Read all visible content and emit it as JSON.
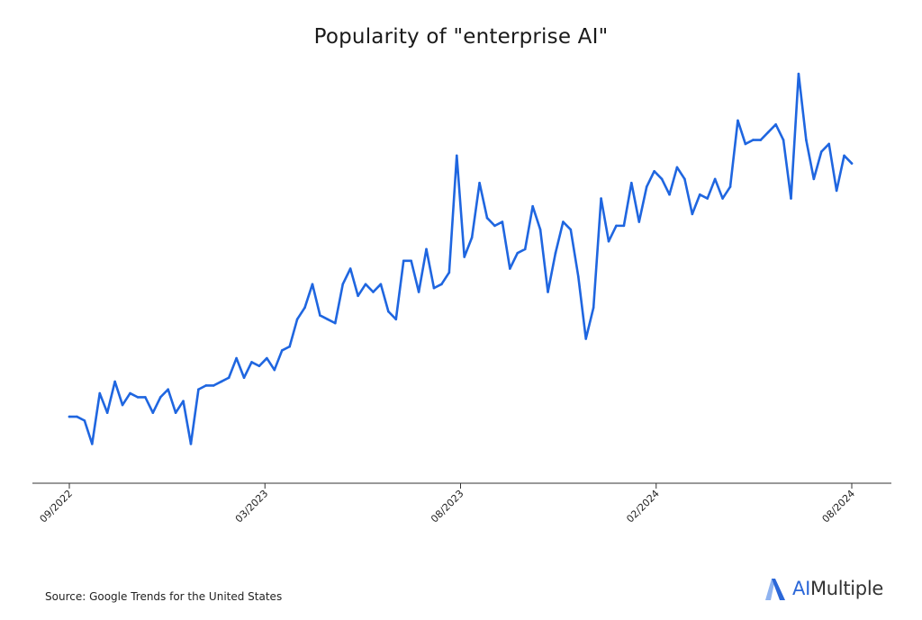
{
  "chart_data": {
    "type": "line",
    "title": "Popularity of \"enterprise AI\"",
    "xlabel": "",
    "ylabel": "",
    "ylim": [
      0,
      100
    ],
    "grid": false,
    "line_color": "#1f66e0",
    "x_ticks": [
      "09/2022",
      "03/2023",
      "08/2023",
      "02/2024",
      "08/2024"
    ],
    "tick_positions": [
      0,
      25,
      50,
      75,
      100
    ],
    "series": [
      {
        "name": "",
        "values": [
          12,
          12,
          11,
          5,
          18,
          13,
          21,
          15,
          18,
          17,
          17,
          13,
          17,
          19,
          13,
          16,
          5,
          19,
          20,
          20,
          21,
          22,
          27,
          22,
          26,
          25,
          27,
          24,
          29,
          30,
          37,
          40,
          46,
          38,
          37,
          36,
          46,
          50,
          43,
          46,
          44,
          46,
          39,
          37,
          52,
          52,
          44,
          55,
          45,
          46,
          49,
          79,
          53,
          58,
          72,
          63,
          61,
          62,
          50,
          54,
          55,
          66,
          60,
          44,
          54,
          62,
          60,
          48,
          32,
          40,
          68,
          57,
          61,
          61,
          72,
          62,
          71,
          75,
          73,
          69,
          76,
          73,
          64,
          69,
          68,
          73,
          68,
          71,
          88,
          82,
          83,
          83,
          85,
          87,
          83,
          68,
          100,
          83,
          73,
          80,
          82,
          70,
          79,
          77
        ]
      }
    ]
  },
  "footer": {
    "source": "Source: Google Trends for the United States",
    "brand_ai": "AI",
    "brand_rest": "Multiple"
  },
  "colors": {
    "brand_blue": "#2b67d8",
    "brand_light": "#8fb3f0"
  }
}
